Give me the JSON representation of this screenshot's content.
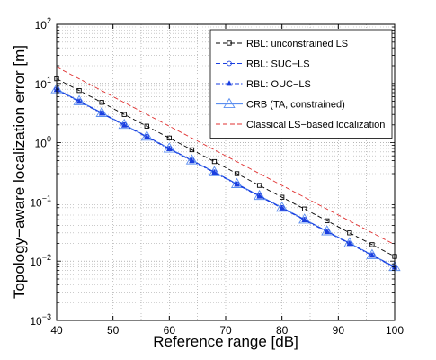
{
  "chart_data": {
    "type": "line",
    "xlabel": "Reference range [dB]",
    "ylabel": "Topology−aware localization error [m]",
    "xlim": [
      40,
      100
    ],
    "ylim": [
      0.001,
      100
    ],
    "yscale": "log",
    "grid": true,
    "legend_position": "top-right",
    "xticks": [
      40,
      50,
      60,
      70,
      80,
      90,
      100
    ],
    "yticks": [
      {
        "base": "10",
        "exp": "−3",
        "value": 0.001
      },
      {
        "base": "10",
        "exp": "−2",
        "value": 0.01
      },
      {
        "base": "10",
        "exp": "−1",
        "value": 0.1
      },
      {
        "base": "10",
        "exp": "0",
        "value": 1
      },
      {
        "base": "10",
        "exp": "1",
        "value": 10
      },
      {
        "base": "10",
        "exp": "2",
        "value": 100
      }
    ],
    "series": [
      {
        "name": "RBL: unconstrained LS",
        "color": "#000000",
        "dash": "dashed",
        "marker": "square",
        "x": [
          40,
          44,
          48,
          52,
          56,
          60,
          64,
          68,
          72,
          76,
          80,
          84,
          88,
          92,
          96,
          100
        ],
        "y": [
          12.0,
          7.6,
          4.8,
          3.0,
          1.9,
          1.2,
          0.76,
          0.48,
          0.3,
          0.19,
          0.12,
          0.076,
          0.048,
          0.03,
          0.019,
          0.012
        ]
      },
      {
        "name": "RBL: SUC−LS",
        "color": "#1a3fe0",
        "dash": "dashed",
        "marker": "circle",
        "x": [
          40,
          44,
          48,
          52,
          56,
          60,
          64,
          68,
          72,
          76,
          80,
          84,
          88,
          92,
          96,
          100
        ],
        "y": [
          8.0,
          5.05,
          3.19,
          2.01,
          1.27,
          0.8,
          0.505,
          0.319,
          0.201,
          0.127,
          0.08,
          0.0505,
          0.0319,
          0.0201,
          0.0127,
          0.008
        ]
      },
      {
        "name": "RBL: OUC−LS",
        "color": "#1a3fe0",
        "dash": "dashdot",
        "marker": "triangle",
        "x": [
          40,
          44,
          48,
          52,
          56,
          60,
          64,
          68,
          72,
          76,
          80,
          84,
          88,
          92,
          96,
          100
        ],
        "y": [
          7.8,
          4.92,
          3.11,
          1.96,
          1.24,
          0.78,
          0.492,
          0.311,
          0.196,
          0.124,
          0.078,
          0.0492,
          0.0311,
          0.0196,
          0.0124,
          0.0078
        ]
      },
      {
        "name": "CRB (TA, constrained)",
        "color": "#5b8ef0",
        "dash": "solid",
        "marker": "triangle-open",
        "x": [
          40,
          44,
          48,
          52,
          56,
          60,
          64,
          68,
          72,
          76,
          80,
          84,
          88,
          92,
          96,
          100
        ],
        "y": [
          8.0,
          5.05,
          3.19,
          2.01,
          1.27,
          0.8,
          0.505,
          0.319,
          0.201,
          0.127,
          0.08,
          0.0505,
          0.0319,
          0.0201,
          0.0127,
          0.008
        ]
      },
      {
        "name": "Classical LS−based localization",
        "color": "#e03030",
        "dash": "dashed",
        "marker": "none",
        "x": [
          40,
          100
        ],
        "y": [
          19.0,
          0.019
        ]
      }
    ]
  }
}
